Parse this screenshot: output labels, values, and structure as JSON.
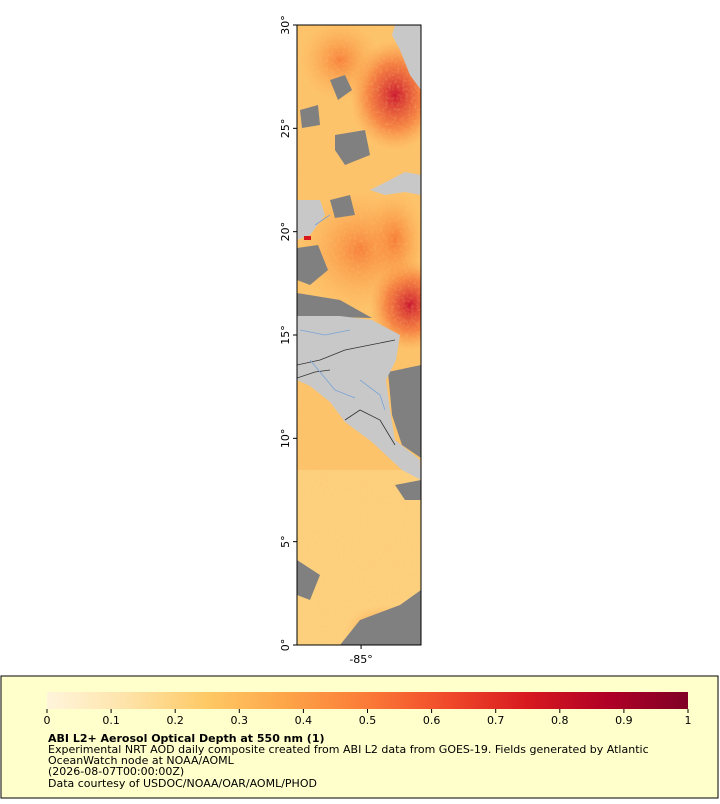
{
  "map": {
    "latlim": [
      0,
      30
    ],
    "lonlim": [
      -88.1,
      -82.1
    ],
    "lat_ticks": [
      {
        "value": 0,
        "label": "0°"
      },
      {
        "value": 5,
        "label": "5°"
      },
      {
        "value": 10,
        "label": "10°"
      },
      {
        "value": 15,
        "label": "15°"
      },
      {
        "value": 20,
        "label": "20°"
      },
      {
        "value": 25,
        "label": "25°"
      },
      {
        "value": 30,
        "label": "30°"
      }
    ],
    "lon_ticks": [
      {
        "value": -85,
        "label": "-85°"
      }
    ]
  },
  "colorbar": {
    "range": [
      0,
      1
    ],
    "ticks": [
      0,
      0.1,
      0.2,
      0.3,
      0.4,
      0.5,
      0.6,
      0.7,
      0.8,
      0.9,
      1
    ],
    "colors": [
      "#fff5dc",
      "#fee3a8",
      "#fec965",
      "#fda448",
      "#fb7a37",
      "#f04a2a",
      "#d7191f",
      "#b00026",
      "#800026"
    ]
  },
  "legend": {
    "title": "ABI L2+ Aerosol Optical Depth at 550 nm (1)",
    "lines": [
      "Experimental NRT AOD daily composite created from ABI L2 data from GOES-19. Fields generated by Atlantic",
      "OceanWatch node at NOAA/AOML",
      "(2026-08-07T00:00:00Z)",
      "Data courtesy of USDOC/NOAA/OAR/AOML/PHOD"
    ]
  }
}
